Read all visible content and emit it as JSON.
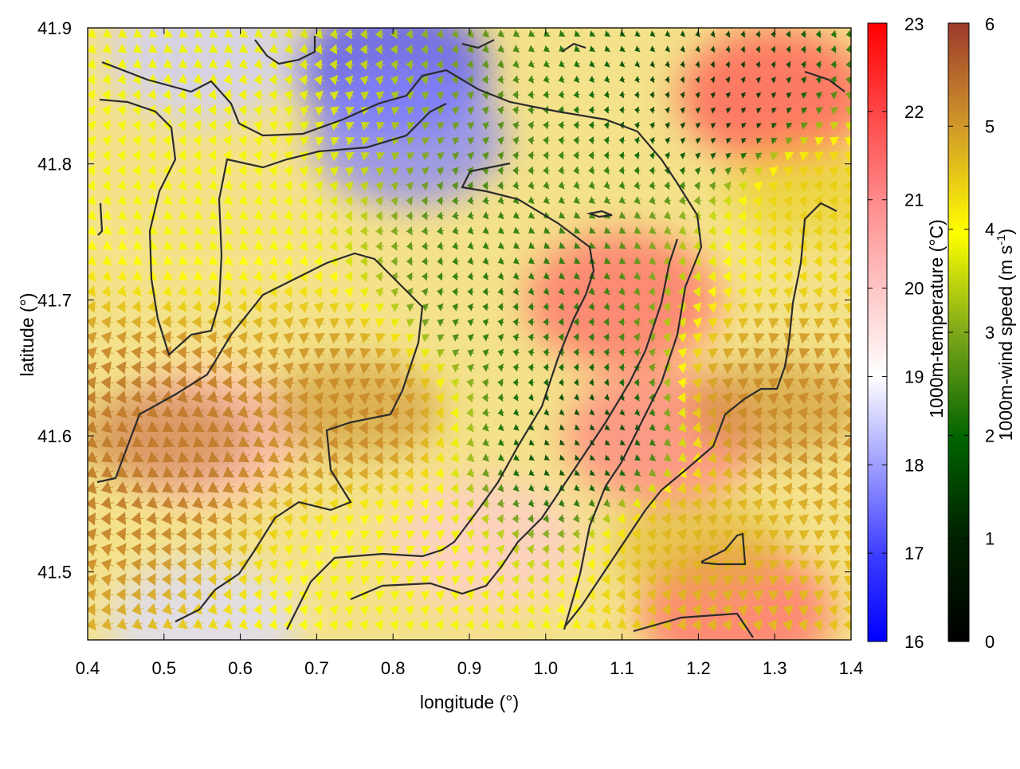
{
  "chart_data": {
    "type": "heatmap",
    "xlabel": "longitude (°)",
    "ylabel": "latitude (°)",
    "xlim": [
      0.4,
      1.4
    ],
    "ylim": [
      41.45,
      41.9
    ],
    "x_ticks": [
      "0.4",
      "0.5",
      "0.6",
      "0.7",
      "0.8",
      "0.9",
      "1.0",
      "1.1",
      "1.2",
      "1.3",
      "1.4"
    ],
    "y_ticks": [
      "41.5",
      "41.6",
      "41.7",
      "41.8",
      "41.9"
    ],
    "grid": false,
    "temperature_colorbar": {
      "label": "1000m-temperature (°C)",
      "range": [
        16,
        23
      ],
      "ticks": [
        "16",
        "17",
        "18",
        "19",
        "20",
        "21",
        "22",
        "23"
      ],
      "colors": [
        "#0000ff",
        "#ffffff",
        "#ff0000"
      ]
    },
    "wind_colorbar": {
      "label_main": "1000m-wind speed (m s",
      "label_sup": "-1",
      "label_end": ")",
      "range": [
        0,
        6
      ],
      "ticks": [
        "0",
        "1",
        "2",
        "3",
        "4",
        "5",
        "6"
      ],
      "colors": [
        "#000000",
        "#006400",
        "#7fa81a",
        "#ffff00",
        "#d29a2a",
        "#9c3a2c"
      ]
    },
    "temperature_field_approx": [
      {
        "lon": 0.55,
        "lat": 41.88,
        "t": 18.8
      },
      {
        "lon": 0.8,
        "lat": 41.87,
        "t": 17.0
      },
      {
        "lon": 0.82,
        "lat": 41.82,
        "t": 17.8
      },
      {
        "lon": 1.3,
        "lat": 41.85,
        "t": 21.8
      },
      {
        "lon": 1.1,
        "lat": 41.7,
        "t": 21.5
      },
      {
        "lon": 1.15,
        "lat": 41.6,
        "t": 21.2
      },
      {
        "lon": 0.92,
        "lat": 41.52,
        "t": 20.2
      },
      {
        "lon": 0.55,
        "lat": 41.6,
        "t": 20.5
      },
      {
        "lon": 1.25,
        "lat": 41.47,
        "t": 21.5
      },
      {
        "lon": 0.55,
        "lat": 41.46,
        "t": 19.0
      }
    ],
    "wind_field_approx": [
      {
        "lon": 0.75,
        "lat": 41.62,
        "speed": 5.0
      },
      {
        "lon": 0.5,
        "lat": 41.6,
        "speed": 5.2
      },
      {
        "lon": 1.3,
        "lat": 41.62,
        "speed": 5.0
      },
      {
        "lon": 1.35,
        "lat": 41.78,
        "speed": 4.2
      },
      {
        "lon": 0.55,
        "lat": 41.78,
        "speed": 3.5
      },
      {
        "lon": 0.95,
        "lat": 41.7,
        "speed": 1.5
      },
      {
        "lon": 1.05,
        "lat": 41.6,
        "speed": 0.8
      },
      {
        "lon": 1.25,
        "lat": 41.84,
        "speed": 0.6
      },
      {
        "lon": 0.8,
        "lat": 41.5,
        "speed": 3.5
      },
      {
        "lon": 1.2,
        "lat": 41.52,
        "speed": 4.5
      }
    ]
  }
}
